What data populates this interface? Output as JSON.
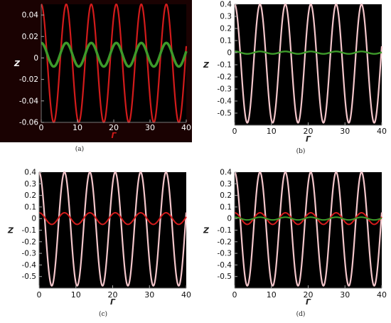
{
  "chart_data": [
    {
      "type": "line",
      "panel_label": "(a)",
      "xlabel": "Γ",
      "ylabel": "Z",
      "xlim": [
        0,
        40
      ],
      "ylim": [
        -0.06,
        0.05
      ],
      "xticks": [
        "0",
        "10",
        "20",
        "30",
        "40"
      ],
      "yticks": [
        "0.04",
        "0.02",
        "0",
        "-0.02",
        "-0.04",
        "-0.06"
      ],
      "background": "#000000",
      "axis_text_color": "#ffffff",
      "label_color": "#d21b1b",
      "grid": false,
      "series": [
        {
          "color": "#d21b1b",
          "width": 2.2,
          "amplitude": 0.055,
          "offset": -0.005,
          "period": 6.9,
          "phase": 1.5708
        },
        {
          "color": "#3d9a2a",
          "width": 3.5,
          "amplitude": 0.011,
          "offset": 0.003,
          "period": 6.9,
          "phase": 1.5708
        }
      ]
    },
    {
      "type": "line",
      "panel_label": "(b)",
      "xlabel": "Γ",
      "ylabel": "Z",
      "xlim": [
        0,
        40
      ],
      "ylim": [
        -0.6,
        0.4
      ],
      "xticks": [
        "0",
        "10",
        "20",
        "30",
        "40"
      ],
      "yticks": [
        "0.4",
        "0.3",
        "0.2",
        "0.1",
        "0",
        "-0.1",
        "-0.2",
        "-0.3",
        "-0.4",
        "-0.5"
      ],
      "background": "#000000",
      "axis_text_color": "#ffffff",
      "label_color": "#222222",
      "grid": false,
      "series": [
        {
          "color": "#f4c6cb",
          "width": 2.2,
          "amplitude": 0.49,
          "offset": -0.09,
          "period": 6.9,
          "phase": 1.5708
        },
        {
          "color": "#3d9a2a",
          "width": 2.4,
          "amplitude": 0.01,
          "offset": 0.0,
          "period": 6.9,
          "phase": 1.5708
        }
      ]
    },
    {
      "type": "line",
      "panel_label": "(c)",
      "xlabel": "Γ",
      "ylabel": "Z",
      "xlim": [
        0,
        40
      ],
      "ylim": [
        -0.6,
        0.4
      ],
      "xticks": [
        "0",
        "10",
        "20",
        "30",
        "40"
      ],
      "yticks": [
        "0.4",
        "0.3",
        "0.2",
        "0.1",
        "0",
        "-0.1",
        "-0.2",
        "-0.3",
        "-0.4",
        "-0.5"
      ],
      "background": "#000000",
      "axis_text_color": "#ffffff",
      "label_color": "#222222",
      "grid": false,
      "series": [
        {
          "color": "#f4c6cb",
          "width": 2.2,
          "amplitude": 0.49,
          "offset": -0.09,
          "period": 6.9,
          "phase": 1.5708
        },
        {
          "color": "#d21b1b",
          "width": 2.0,
          "amplitude": 0.05,
          "offset": 0.0,
          "period": 6.9,
          "phase": 1.5708
        }
      ]
    },
    {
      "type": "line",
      "panel_label": "(d)",
      "xlabel": "Γ",
      "ylabel": "Z",
      "xlim": [
        0,
        40
      ],
      "ylim": [
        -0.6,
        0.4
      ],
      "xticks": [
        "0",
        "10",
        "20",
        "30",
        "40"
      ],
      "yticks": [
        "0.4",
        "0.3",
        "0.2",
        "0.1",
        "0",
        "-0.1",
        "-0.2",
        "-0.3",
        "-0.4",
        "-0.5"
      ],
      "background": "#000000",
      "axis_text_color": "#ffffff",
      "label_color": "#222222",
      "grid": false,
      "series": [
        {
          "color": "#f4c6cb",
          "width": 2.2,
          "amplitude": 0.49,
          "offset": -0.09,
          "period": 6.9,
          "phase": 1.5708
        },
        {
          "color": "#d21b1b",
          "width": 2.0,
          "amplitude": 0.05,
          "offset": 0.0,
          "period": 6.9,
          "phase": 1.5708
        },
        {
          "color": "#3d9a2a",
          "width": 2.0,
          "amplitude": 0.012,
          "offset": 0.0,
          "period": 6.9,
          "phase": 1.5708
        }
      ]
    }
  ]
}
